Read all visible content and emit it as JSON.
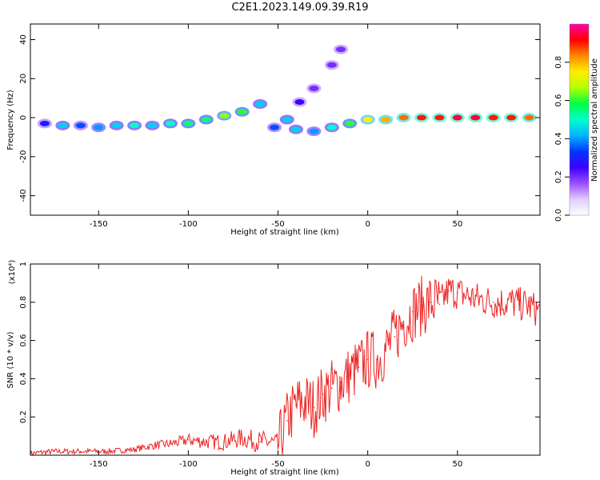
{
  "figure": {
    "title": "C2E1.2023.149.09.39.R19"
  },
  "chart_data": [
    {
      "type": "heatmap",
      "xlabel": "Height of straight line (km)",
      "ylabel": "Frequency (Hz)",
      "xlim": [
        -188,
        96
      ],
      "ylim": [
        -50,
        48
      ],
      "xticks": [
        -150,
        -100,
        -50,
        0,
        50
      ],
      "yticks": [
        -40,
        -20,
        0,
        20,
        40
      ],
      "colorbar": {
        "label": "Normalized spectral amplitude",
        "range": [
          0.0,
          1.0
        ],
        "ticks": [
          0.0,
          0.2,
          0.4,
          0.6,
          0.8
        ],
        "colors": [
          "#ffffff",
          "#e0ccff",
          "#9b4dff",
          "#3c00ff",
          "#0036ff",
          "#00b4ff",
          "#00ffcc",
          "#00ff44",
          "#b4ff00",
          "#ffee00",
          "#ff8800",
          "#ff0000",
          "#ff00aa"
        ]
      },
      "ridge": [
        {
          "x": -180,
          "y": -3,
          "v": 0.3
        },
        {
          "x": -170,
          "y": -4,
          "v": 0.45
        },
        {
          "x": -160,
          "y": -4,
          "v": 0.35
        },
        {
          "x": -150,
          "y": -5,
          "v": 0.4
        },
        {
          "x": -140,
          "y": -4,
          "v": 0.45
        },
        {
          "x": -130,
          "y": -4,
          "v": 0.5
        },
        {
          "x": -120,
          "y": -4,
          "v": 0.45
        },
        {
          "x": -110,
          "y": -3,
          "v": 0.5
        },
        {
          "x": -100,
          "y": -3,
          "v": 0.55
        },
        {
          "x": -90,
          "y": -1,
          "v": 0.55
        },
        {
          "x": -80,
          "y": 1,
          "v": 0.65
        },
        {
          "x": -70,
          "y": 3,
          "v": 0.6
        },
        {
          "x": -60,
          "y": 7,
          "v": 0.45
        },
        {
          "x": -52,
          "y": -5,
          "v": 0.35
        },
        {
          "x": -45,
          "y": -1,
          "v": 0.45
        },
        {
          "x": -38,
          "y": 8,
          "v": 0.25
        },
        {
          "x": -30,
          "y": 15,
          "v": 0.2
        },
        {
          "x": -20,
          "y": 27,
          "v": 0.2
        },
        {
          "x": -15,
          "y": 35,
          "v": 0.2
        },
        {
          "x": -40,
          "y": -6,
          "v": 0.45
        },
        {
          "x": -30,
          "y": -7,
          "v": 0.4
        },
        {
          "x": -20,
          "y": -5,
          "v": 0.5
        },
        {
          "x": -10,
          "y": -3,
          "v": 0.6
        },
        {
          "x": 0,
          "y": -1,
          "v": 0.75
        },
        {
          "x": 10,
          "y": -1,
          "v": 0.8
        },
        {
          "x": 20,
          "y": 0,
          "v": 0.85
        },
        {
          "x": 30,
          "y": 0,
          "v": 0.9
        },
        {
          "x": 40,
          "y": 0,
          "v": 0.9
        },
        {
          "x": 50,
          "y": 0,
          "v": 0.95
        },
        {
          "x": 60,
          "y": 0,
          "v": 0.95
        },
        {
          "x": 70,
          "y": 0,
          "v": 0.9
        },
        {
          "x": 80,
          "y": 0,
          "v": 0.9
        },
        {
          "x": 90,
          "y": 0,
          "v": 0.85
        }
      ]
    },
    {
      "type": "line",
      "xlabel": "Height of straight line (km)",
      "ylabel": "SNR (10 * v/v)",
      "y_multiplier": "(x10⁴)",
      "xlim": [
        -188,
        96
      ],
      "ylim": [
        0,
        1.0
      ],
      "xticks": [
        -150,
        -100,
        -50,
        0,
        50
      ],
      "yticks": [
        0.2,
        0.4,
        0.6,
        0.8,
        1.0
      ],
      "series": [
        {
          "color": "#ee2222",
          "x": [
            -188,
            -175,
            -160,
            -145,
            -130,
            -120,
            -110,
            -100,
            -90,
            -80,
            -70,
            -60,
            -55,
            -50,
            -45,
            -40,
            -35,
            -30,
            -25,
            -20,
            -15,
            -10,
            -5,
            0,
            5,
            10,
            15,
            20,
            25,
            30,
            35,
            40,
            45,
            50,
            60,
            70,
            80,
            90,
            96
          ],
          "y": [
            0.01,
            0.02,
            0.02,
            0.02,
            0.03,
            0.05,
            0.06,
            0.08,
            0.07,
            0.07,
            0.09,
            0.07,
            0.07,
            0.05,
            0.18,
            0.26,
            0.28,
            0.25,
            0.32,
            0.35,
            0.38,
            0.42,
            0.46,
            0.5,
            0.5,
            0.55,
            0.62,
            0.7,
            0.75,
            0.78,
            0.8,
            0.79,
            0.86,
            0.85,
            0.82,
            0.8,
            0.8,
            0.78,
            0.75
          ]
        }
      ]
    }
  ]
}
